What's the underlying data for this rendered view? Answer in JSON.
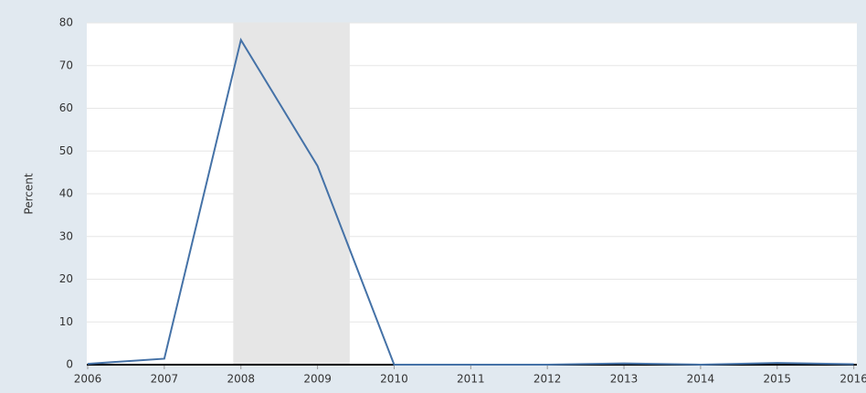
{
  "chart_data": {
    "type": "line",
    "y_axis_label": "Percent",
    "x": [
      2006,
      2007,
      2008,
      2009,
      2010,
      2011,
      2012,
      2013,
      2014,
      2015,
      2016
    ],
    "series": [
      {
        "color": "#4572a7",
        "values": [
          0.2,
          1.4,
          76,
          46.5,
          0,
          0,
          0,
          0.3,
          0,
          0.4,
          0.1
        ]
      }
    ],
    "recessions": [
      {
        "start": 2007.9,
        "end": 2009.42,
        "color": "#e6e6e6"
      }
    ],
    "xlim": [
      2006,
      2016.04
    ],
    "xticks": [
      2006,
      2007,
      2008,
      2009,
      2010,
      2011,
      2012,
      2013,
      2014,
      2015,
      2016
    ],
    "ylim": [
      0,
      80
    ],
    "yticks": [
      0,
      10,
      20,
      30,
      40,
      50,
      60,
      70,
      80
    ],
    "grid": true
  }
}
